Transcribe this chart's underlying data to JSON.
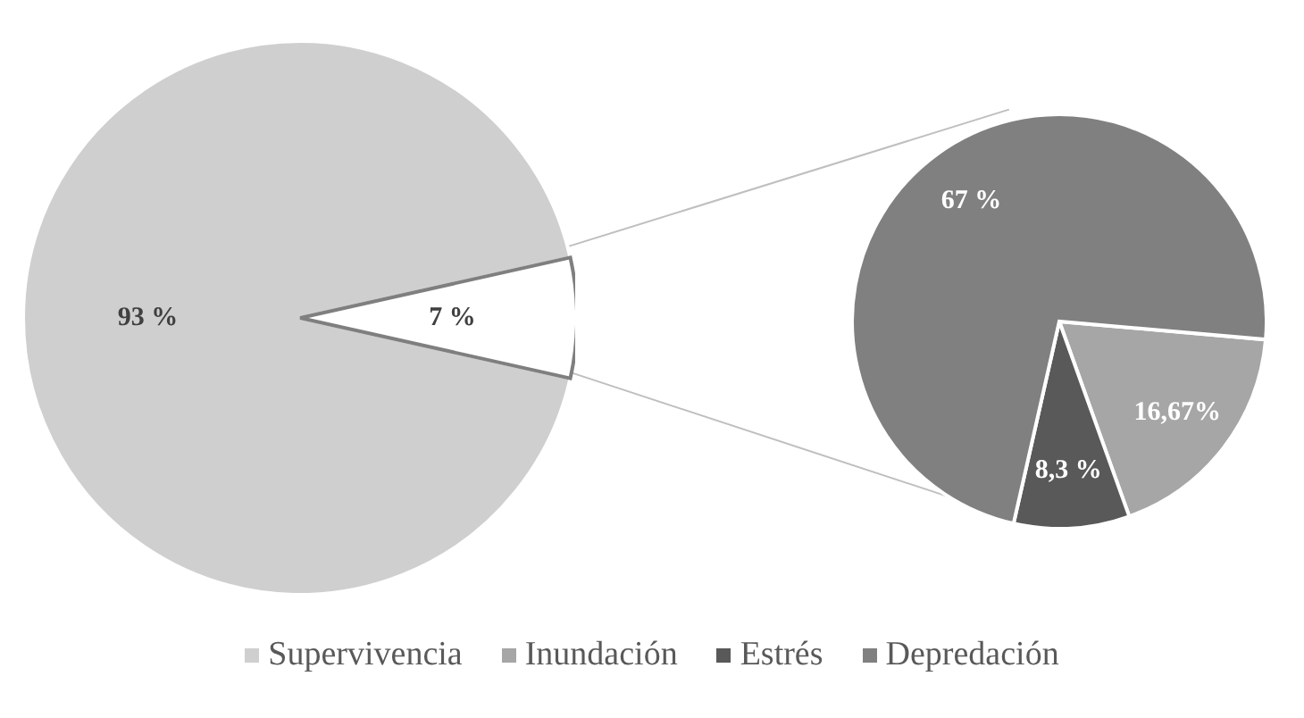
{
  "chart_data": [
    {
      "type": "pie",
      "categories": [
        "Supervivencia",
        null
      ],
      "values": [
        93,
        7
      ],
      "colors": [
        "#d0cfd0",
        "#ffffff"
      ],
      "value_labels": [
        "93 %",
        "7 %"
      ],
      "legend": "bottom"
    },
    {
      "type": "pie",
      "categories": [
        "Inundación",
        "Estrés",
        "Depredación"
      ],
      "values": [
        16.67,
        8.3,
        67
      ],
      "colors": [
        "#a6a6a6",
        "#595959",
        "#808080"
      ],
      "value_labels": [
        "16,67%",
        "8,3 %",
        "67 %"
      ],
      "legend": "bottom"
    }
  ]
}
